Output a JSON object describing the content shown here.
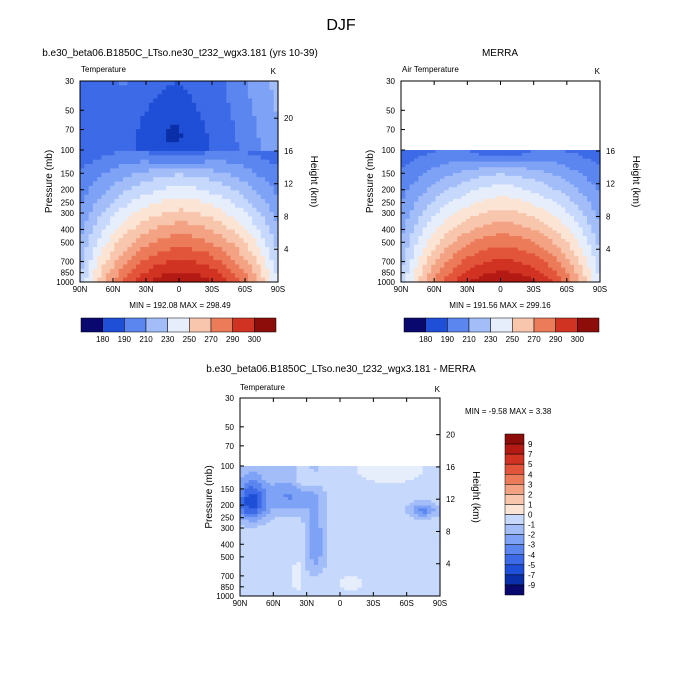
{
  "figure_title": "DJF",
  "chart_data": [
    {
      "type": "heatmap",
      "title": "b.e30_beta06.B1850C_LTso.ne30_t232_wgx3.181 (yrs 10-39)",
      "variable_label": "Temperature",
      "units": "K",
      "ylabel": "Pressure (mb)",
      "ylabel_right": "Height (km)",
      "x_ticks": [
        "90N",
        "60N",
        "30N",
        "0",
        "30S",
        "60S",
        "90S"
      ],
      "y_ticks": [
        "30",
        "50",
        "70",
        "100",
        "150",
        "200",
        "250",
        "300",
        "400",
        "500",
        "700",
        "850",
        "1000"
      ],
      "y_right_ticks": [
        "20",
        "16",
        "12",
        "8",
        "4"
      ],
      "x_range": [
        90,
        -90
      ],
      "y_range": [
        30,
        1000
      ],
      "y_scale": "log",
      "stats_text": "MIN = 192.08  MAX = 298.49",
      "min": 192.08,
      "max": 298.49,
      "colorbar_labels": [
        "180",
        "190",
        "210",
        "230",
        "250",
        "270",
        "290",
        "300"
      ],
      "data_top_pressure": 30
    },
    {
      "type": "heatmap",
      "title": "MERRA",
      "variable_label": "Air Temperature",
      "units": "K",
      "ylabel": "Pressure (mb)",
      "ylabel_right": "Height (km)",
      "x_ticks": [
        "90N",
        "60N",
        "30N",
        "0",
        "30S",
        "60S",
        "90S"
      ],
      "y_ticks": [
        "30",
        "50",
        "70",
        "100",
        "150",
        "200",
        "250",
        "300",
        "400",
        "500",
        "700",
        "850",
        "1000"
      ],
      "y_right_ticks": [
        "16",
        "12",
        "8",
        "4"
      ],
      "x_range": [
        90,
        -90
      ],
      "y_range": [
        30,
        1000
      ],
      "y_scale": "log",
      "stats_text": "MIN = 191.56  MAX = 299.16",
      "min": 191.56,
      "max": 299.16,
      "colorbar_labels": [
        "180",
        "190",
        "210",
        "230",
        "250",
        "270",
        "290",
        "300"
      ],
      "data_top_pressure": 100
    },
    {
      "type": "heatmap",
      "title": "b.e30_beta06.B1850C_LTso.ne30_t232_wgx3.181 - MERRA",
      "variable_label": "Temperature",
      "units": "K",
      "ylabel": "Pressure (mb)",
      "ylabel_right": "Height (km)",
      "x_ticks": [
        "90N",
        "60N",
        "30N",
        "0",
        "30S",
        "60S",
        "90S"
      ],
      "y_ticks": [
        "30",
        "50",
        "70",
        "100",
        "150",
        "200",
        "250",
        "300",
        "400",
        "500",
        "700",
        "850",
        "1000"
      ],
      "y_right_ticks": [
        "20",
        "16",
        "12",
        "8",
        "4"
      ],
      "x_range": [
        90,
        -90
      ],
      "y_range": [
        30,
        1000
      ],
      "y_scale": "log",
      "stats_text": "MIN = -9.58  MAX =  3.38",
      "min": -9.58,
      "max": 3.38,
      "colorbar_labels": [
        "9",
        "7",
        "5",
        "4",
        "3",
        "2",
        "1",
        "0",
        "-1",
        "-2",
        "-3",
        "-4",
        "-5",
        "-7",
        "-9"
      ],
      "data_top_pressure": 100
    }
  ],
  "colors": {
    "temp_scale": [
      "#08086e",
      "#0a2fa8",
      "#1f4fd6",
      "#3d6ae6",
      "#5b86ef",
      "#7ea2f5",
      "#a2bdf8",
      "#c6d8fb",
      "#e6eefc",
      "#fbe4d4",
      "#f8c6ad",
      "#f3a283",
      "#ec7b5a",
      "#e2553a",
      "#d13323",
      "#b21a13",
      "#8c0d0a"
    ],
    "diff_scale": [
      "#08086e",
      "#0a2fa8",
      "#1f4fd6",
      "#3d6ae6",
      "#5b86ef",
      "#7ea2f5",
      "#a2bdf8",
      "#c6d8fb",
      "#e6eefc",
      "#fbe4d4",
      "#f8c6ad",
      "#f3a283",
      "#ec7b5a",
      "#e2553a",
      "#d13323",
      "#b21a13",
      "#8c0d0a"
    ]
  }
}
